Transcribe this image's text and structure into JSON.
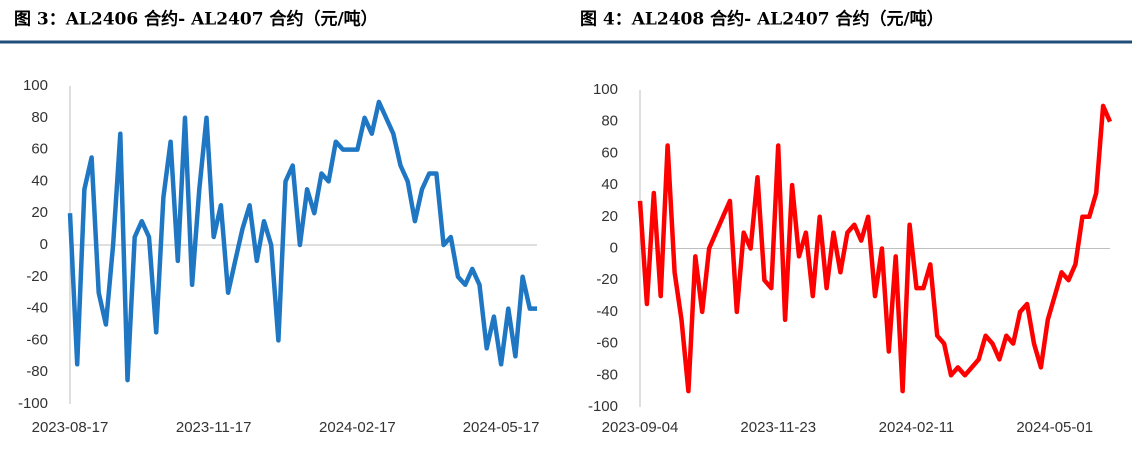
{
  "chart_data": [
    {
      "type": "line",
      "title": "图 3：AL2406 合约- AL2407 合约（元/吨）",
      "categories": [
        "2023-08-17",
        null,
        null,
        null,
        null,
        null,
        null,
        null,
        null,
        null,
        null,
        null,
        null,
        null,
        null,
        null,
        null,
        null,
        null,
        null,
        "2023-11-17",
        null,
        null,
        null,
        null,
        null,
        null,
        null,
        null,
        null,
        null,
        null,
        null,
        null,
        null,
        null,
        null,
        null,
        null,
        null,
        "2024-02-17",
        null,
        null,
        null,
        null,
        null,
        null,
        null,
        null,
        null,
        null,
        null,
        null,
        null,
        null,
        null,
        null,
        null,
        null,
        null,
        "2024-05-17",
        null,
        null,
        null,
        null,
        null
      ],
      "series": [
        {
          "color": "#1f77c4",
          "values": [
            20,
            -75,
            35,
            55,
            -30,
            -50,
            0,
            70,
            -85,
            5,
            15,
            5,
            -55,
            30,
            65,
            -10,
            80,
            -25,
            35,
            80,
            5,
            25,
            -30,
            -10,
            10,
            25,
            -10,
            15,
            0,
            -60,
            40,
            50,
            0,
            35,
            20,
            45,
            40,
            65,
            60,
            60,
            60,
            80,
            70,
            90,
            80,
            70,
            50,
            40,
            15,
            35,
            45,
            45,
            0,
            5,
            -20,
            -25,
            -15,
            -25,
            -65,
            -45,
            -75,
            -40,
            -70,
            -20,
            -40,
            -40
          ]
        }
      ],
      "ylim": [
        -100,
        100
      ],
      "yticks": [
        -100,
        -80,
        -60,
        -40,
        -20,
        0,
        20,
        40,
        60,
        80,
        100
      ]
    },
    {
      "type": "line",
      "title": "图 4：AL2408 合约- AL2407 合约（元/吨）",
      "categories": [
        "2023-09-04",
        null,
        null,
        null,
        null,
        null,
        null,
        null,
        null,
        null,
        null,
        null,
        null,
        null,
        null,
        null,
        null,
        null,
        null,
        null,
        "2023-11-23",
        null,
        null,
        null,
        null,
        null,
        null,
        null,
        null,
        null,
        null,
        null,
        null,
        null,
        null,
        null,
        null,
        null,
        null,
        null,
        "2024-02-11",
        null,
        null,
        null,
        null,
        null,
        null,
        null,
        null,
        null,
        null,
        null,
        null,
        null,
        null,
        null,
        null,
        null,
        null,
        null,
        "2024-05-01",
        null,
        null,
        null,
        null,
        null,
        null,
        null,
        null
      ],
      "series": [
        {
          "color": "#ff0000",
          "values": [
            30,
            -35,
            35,
            -30,
            65,
            -15,
            -45,
            -90,
            -5,
            -40,
            0,
            10,
            20,
            30,
            -40,
            10,
            0,
            45,
            -20,
            -25,
            65,
            -45,
            40,
            -5,
            10,
            -30,
            20,
            -25,
            10,
            -15,
            10,
            15,
            5,
            20,
            -30,
            0,
            -65,
            -5,
            -90,
            15,
            -25,
            -25,
            -10,
            -55,
            -60,
            -80,
            -75,
            -80,
            -75,
            -70,
            -55,
            -60,
            -70,
            -55,
            -60,
            -40,
            -35,
            -60,
            -75,
            -45,
            -30,
            -15,
            -20,
            -10,
            20,
            20,
            35,
            90,
            80
          ]
        }
      ],
      "ylim": [
        -100,
        100
      ],
      "yticks": [
        -100,
        -80,
        -60,
        -40,
        -20,
        0,
        20,
        40,
        60,
        80,
        100
      ]
    }
  ]
}
